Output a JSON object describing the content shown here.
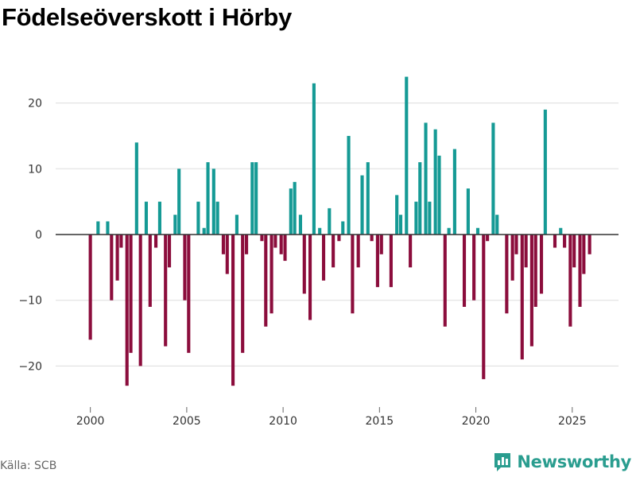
{
  "title": "Födelseöverskott i Hörby",
  "source": "Källa: SCB",
  "brand": "Newsworthy",
  "colors": {
    "positive": "#159a95",
    "negative": "#8b0d3c",
    "grid": "#dddddd",
    "zero": "#333333",
    "brand": "#2a9d8f"
  },
  "chart_data": {
    "type": "bar",
    "title": "Födelseöverskott i Hörby",
    "xlabel": "",
    "ylabel": "",
    "ylim": [
      -26,
      26
    ],
    "xlim": [
      1998.2,
      2027.4
    ],
    "xticks": [
      2000,
      2005,
      2010,
      2015,
      2020,
      2025
    ],
    "yticks": [
      -20,
      -10,
      0,
      10,
      20
    ],
    "grid": true,
    "bar_width_years": 0.17,
    "x": [
      2000.0,
      2000.4,
      2000.9,
      2001.1,
      2001.4,
      2001.6,
      2001.9,
      2002.1,
      2002.4,
      2002.6,
      2002.9,
      2003.1,
      2003.4,
      2003.6,
      2003.9,
      2004.1,
      2004.4,
      2004.6,
      2004.9,
      2005.1,
      2005.6,
      2005.9,
      2006.1,
      2006.4,
      2006.6,
      2006.9,
      2007.1,
      2007.4,
      2007.6,
      2007.9,
      2008.1,
      2008.4,
      2008.6,
      2008.9,
      2009.1,
      2009.4,
      2009.6,
      2009.9,
      2010.1,
      2010.4,
      2010.6,
      2010.9,
      2011.1,
      2011.4,
      2011.6,
      2011.9,
      2012.1,
      2012.4,
      2012.6,
      2012.9,
      2013.1,
      2013.4,
      2013.6,
      2013.9,
      2014.1,
      2014.4,
      2014.6,
      2014.9,
      2015.1,
      2015.6,
      2015.9,
      2016.1,
      2016.4,
      2016.6,
      2016.9,
      2017.1,
      2017.4,
      2017.6,
      2017.9,
      2018.1,
      2018.4,
      2018.6,
      2018.9,
      2019.4,
      2019.6,
      2019.9,
      2020.1,
      2020.4,
      2020.6,
      2020.9,
      2021.1,
      2021.6,
      2021.9,
      2022.1,
      2022.4,
      2022.6,
      2022.9,
      2023.1,
      2023.4,
      2023.6,
      2024.1,
      2024.4,
      2024.6,
      2024.9,
      2025.1,
      2025.4,
      2025.6,
      2025.9
    ],
    "values": [
      -16,
      2,
      2,
      -10,
      -7,
      -2,
      -23,
      -18,
      14,
      -20,
      5,
      -11,
      -2,
      5,
      -17,
      -5,
      3,
      10,
      -10,
      -18,
      5,
      1,
      11,
      10,
      5,
      -3,
      -6,
      -23,
      3,
      -18,
      -3,
      11,
      11,
      -1,
      -14,
      -12,
      -2,
      -3,
      -4,
      7,
      8,
      3,
      -9,
      -13,
      23,
      1,
      -7,
      4,
      -5,
      -1,
      2,
      15,
      -12,
      -5,
      9,
      11,
      -1,
      -8,
      -3,
      -8,
      6,
      3,
      24,
      -5,
      5,
      11,
      17,
      5,
      16,
      12,
      -14,
      1,
      13,
      -11,
      7,
      -10,
      1,
      -22,
      -1,
      17,
      3,
      -12,
      -7,
      -3,
      -19,
      -5,
      -17,
      -11,
      -9,
      19,
      -2,
      1,
      -2,
      -14,
      -5,
      -11,
      -6,
      -3
    ]
  }
}
